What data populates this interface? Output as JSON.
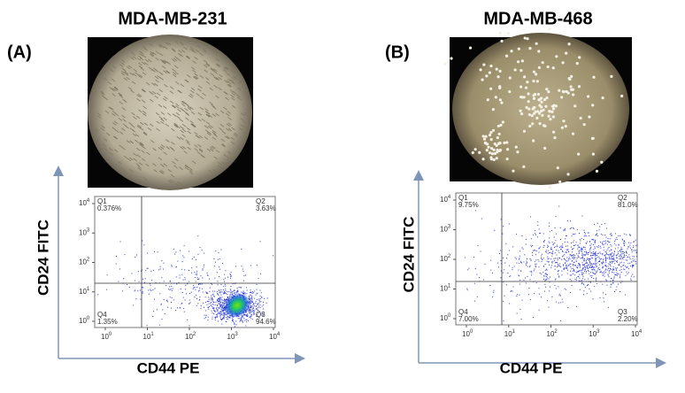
{
  "panels": [
    {
      "label": "(A)",
      "title": "MDA-MB-231",
      "y_label": "CD24 FITC",
      "x_label": "CD44 PE",
      "quadrants": [
        {
          "name": "Q1",
          "value": "0.376%"
        },
        {
          "name": "Q2",
          "value": "3.63%"
        },
        {
          "name": "Q4",
          "value": "1.35%"
        },
        {
          "name": "Q3",
          "value": "94.6%"
        }
      ],
      "ticks": [
        {
          "base": "10",
          "exp": "0"
        },
        {
          "base": "10",
          "exp": "1"
        },
        {
          "base": "10",
          "exp": "2"
        },
        {
          "base": "10",
          "exp": "3"
        },
        {
          "base": "10",
          "exp": "4"
        }
      ]
    },
    {
      "label": "(B)",
      "title": "MDA-MB-468",
      "y_label": "CD24 FITC",
      "x_label": "CD44 PE",
      "quadrants": [
        {
          "name": "Q1",
          "value": "9.75%"
        },
        {
          "name": "Q2",
          "value": "81.0%"
        },
        {
          "name": "Q4",
          "value": "7.00%"
        },
        {
          "name": "Q3",
          "value": "2.20%"
        }
      ],
      "ticks": [
        {
          "base": "10",
          "exp": "0"
        },
        {
          "base": "10",
          "exp": "1"
        },
        {
          "base": "10",
          "exp": "2"
        },
        {
          "base": "10",
          "exp": "3"
        },
        {
          "base": "10",
          "exp": "4"
        }
      ]
    }
  ]
}
